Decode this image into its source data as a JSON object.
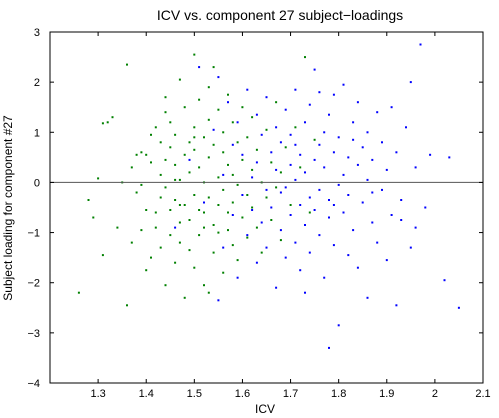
{
  "figure": {
    "background": "#ffffff"
  },
  "chart_data": {
    "type": "scatter",
    "title": "ICV vs. component 27 subject−loadings",
    "xlabel": "ICV",
    "ylabel": "Subject loading for component #27",
    "xlim": [
      1.2,
      2.1
    ],
    "ylim": [
      -4,
      3
    ],
    "x_ticks": [
      1.3,
      1.4,
      1.5,
      1.6,
      1.7,
      1.8,
      1.9,
      2.0,
      2.1
    ],
    "x_tick_labels": [
      "1.3",
      "1.4",
      "1.5",
      "1.6",
      "1.7",
      "1.8",
      "1.9",
      "2",
      "2.1"
    ],
    "y_ticks": [
      -4,
      -3,
      -2,
      -1,
      0,
      1,
      2,
      3
    ],
    "y_tick_labels": [
      "−4",
      "−3",
      "−2",
      "−1",
      "0",
      "1",
      "2",
      "3"
    ],
    "reference_line_y": 0,
    "grid": false,
    "legend": "none",
    "series": [
      {
        "color": "#008000",
        "points": [
          [
            1.26,
            -2.2
          ],
          [
            1.28,
            -0.35
          ],
          [
            1.29,
            -0.7
          ],
          [
            1.3,
            0.08
          ],
          [
            1.31,
            -1.45
          ],
          [
            1.31,
            1.18
          ],
          [
            1.32,
            1.2
          ],
          [
            1.33,
            1.3
          ],
          [
            1.34,
            -0.9
          ],
          [
            1.35,
            0.0
          ],
          [
            1.36,
            2.35
          ],
          [
            1.36,
            -2.45
          ],
          [
            1.37,
            -1.2
          ],
          [
            1.37,
            0.3
          ],
          [
            1.38,
            -0.2
          ],
          [
            1.38,
            0.55
          ],
          [
            1.39,
            -0.95
          ],
          [
            1.39,
            0.6
          ],
          [
            1.39,
            -0.05
          ],
          [
            1.4,
            -0.55
          ],
          [
            1.4,
            0.55
          ],
          [
            1.4,
            -1.75
          ],
          [
            1.41,
            0.95
          ],
          [
            1.41,
            -1.5
          ],
          [
            1.41,
            0.4
          ],
          [
            1.42,
            -0.6
          ],
          [
            1.42,
            1.1
          ],
          [
            1.42,
            -0.9
          ],
          [
            1.43,
            -0.3
          ],
          [
            1.43,
            0.8
          ],
          [
            1.43,
            -1.3
          ],
          [
            1.43,
            0.15
          ],
          [
            1.44,
            1.4
          ],
          [
            1.44,
            -0.1
          ],
          [
            1.44,
            -2.05
          ],
          [
            1.44,
            0.45
          ],
          [
            1.45,
            -0.55
          ],
          [
            1.45,
            -1.05
          ],
          [
            1.45,
            0.7
          ],
          [
            1.45,
            1.2
          ],
          [
            1.46,
            -0.35
          ],
          [
            1.46,
            0.35
          ],
          [
            1.46,
            -1.6
          ],
          [
            1.46,
            0.95
          ],
          [
            1.47,
            -0.8
          ],
          [
            1.47,
            2.05
          ],
          [
            1.47,
            0.05
          ],
          [
            1.47,
            -1.2
          ],
          [
            1.48,
            0.55
          ],
          [
            1.48,
            -0.45
          ],
          [
            1.48,
            1.5
          ],
          [
            1.48,
            -2.3
          ],
          [
            1.49,
            0.2
          ],
          [
            1.49,
            -0.75
          ],
          [
            1.49,
            0.8
          ],
          [
            1.49,
            -1.35
          ],
          [
            1.5,
            2.55
          ],
          [
            1.5,
            -0.25
          ],
          [
            1.5,
            0.65
          ],
          [
            1.5,
            -1.7
          ],
          [
            1.5,
            1.1
          ],
          [
            1.51,
            -0.55
          ],
          [
            1.51,
            0.3
          ],
          [
            1.51,
            -1.05
          ],
          [
            1.51,
            1.65
          ],
          [
            1.52,
            -2.05
          ],
          [
            1.52,
            0.0
          ],
          [
            1.52,
            0.9
          ],
          [
            1.52,
            -0.6
          ],
          [
            1.53,
            -2.2
          ],
          [
            1.53,
            1.25
          ],
          [
            1.53,
            -0.3
          ],
          [
            1.53,
            0.5
          ],
          [
            1.54,
            -1.4
          ],
          [
            1.54,
            0.75
          ],
          [
            1.54,
            -0.85
          ],
          [
            1.54,
            2.3
          ],
          [
            1.55,
            0.1
          ],
          [
            1.55,
            -0.45
          ],
          [
            1.55,
            1.45
          ],
          [
            1.55,
            -1.0
          ],
          [
            1.56,
            0.6
          ],
          [
            1.56,
            -0.15
          ],
          [
            1.56,
            1.0
          ],
          [
            1.56,
            -1.8
          ],
          [
            1.57,
            -0.6
          ],
          [
            1.57,
            0.35
          ],
          [
            1.57,
            1.75
          ],
          [
            1.57,
            -0.95
          ],
          [
            1.58,
            0.15
          ],
          [
            1.58,
            -0.4
          ],
          [
            1.58,
            1.2
          ],
          [
            1.58,
            -1.25
          ],
          [
            1.59,
            0.8
          ],
          [
            1.59,
            -0.05
          ],
          [
            1.59,
            -1.55
          ],
          [
            1.6,
            0.45
          ],
          [
            1.6,
            -0.7
          ],
          [
            1.6,
            1.5
          ],
          [
            1.61,
            -0.25
          ],
          [
            1.61,
            0.9
          ],
          [
            1.61,
            -1.1
          ],
          [
            1.62,
            0.25
          ],
          [
            1.62,
            -0.5
          ],
          [
            1.62,
            1.3
          ],
          [
            1.63,
            -0.9
          ],
          [
            1.63,
            0.65
          ],
          [
            1.64,
            0.0
          ],
          [
            1.64,
            -1.4
          ],
          [
            1.65,
            1.05
          ],
          [
            1.65,
            -0.3
          ],
          [
            1.66,
            0.4
          ],
          [
            1.66,
            -0.75
          ],
          [
            1.67,
            1.6
          ],
          [
            1.67,
            -0.1
          ],
          [
            1.68,
            0.2
          ],
          [
            1.68,
            -1.15
          ],
          [
            1.69,
            0.7
          ],
          [
            1.7,
            -0.45
          ],
          [
            1.71,
            1.1
          ],
          [
            1.72,
            0.3
          ],
          [
            1.73,
            2.5
          ],
          [
            1.74,
            -0.6
          ],
          [
            1.75,
            0.85
          ],
          [
            1.44,
            1.7
          ],
          [
            1.46,
            0.05
          ],
          [
            1.47,
            -0.45
          ],
          [
            1.5,
            0.9
          ],
          [
            1.52,
            -0.9
          ],
          [
            1.53,
            1.9
          ]
        ]
      },
      {
        "color": "#0000ff",
        "points": [
          [
            1.46,
            -0.9
          ],
          [
            1.49,
            0.45
          ],
          [
            1.51,
            2.3
          ],
          [
            1.52,
            -0.4
          ],
          [
            1.54,
            1.05
          ],
          [
            1.55,
            -2.35
          ],
          [
            1.55,
            2.1
          ],
          [
            1.56,
            0.15
          ],
          [
            1.56,
            -1.3
          ],
          [
            1.57,
            1.6
          ],
          [
            1.58,
            -0.65
          ],
          [
            1.58,
            0.75
          ],
          [
            1.59,
            -1.9
          ],
          [
            1.59,
            1.2
          ],
          [
            1.6,
            -0.25
          ],
          [
            1.6,
            0.55
          ],
          [
            1.61,
            1.85
          ],
          [
            1.61,
            -1.05
          ],
          [
            1.62,
            0.1
          ],
          [
            1.62,
            -0.55
          ],
          [
            1.63,
            1.35
          ],
          [
            1.63,
            -1.6
          ],
          [
            1.63,
            0.4
          ],
          [
            1.64,
            -0.8
          ],
          [
            1.64,
            0.95
          ],
          [
            1.65,
            -0.15
          ],
          [
            1.65,
            -1.3
          ],
          [
            1.65,
            1.7
          ],
          [
            1.66,
            0.6
          ],
          [
            1.66,
            -0.5
          ],
          [
            1.67,
            -2.1
          ],
          [
            1.67,
            0.25
          ],
          [
            1.67,
            1.1
          ],
          [
            1.68,
            -0.95
          ],
          [
            1.68,
            0.8
          ],
          [
            1.68,
            -0.2
          ],
          [
            1.69,
            1.45
          ],
          [
            1.69,
            -1.5
          ],
          [
            1.7,
            0.35
          ],
          [
            1.7,
            -0.65
          ],
          [
            1.7,
            0.95
          ],
          [
            1.71,
            -1.2
          ],
          [
            1.71,
            1.85
          ],
          [
            1.71,
            0.05
          ],
          [
            1.72,
            -0.45
          ],
          [
            1.72,
            0.55
          ],
          [
            1.72,
            -1.75
          ],
          [
            1.73,
            1.2
          ],
          [
            1.73,
            -0.85
          ],
          [
            1.73,
            0.2
          ],
          [
            1.74,
            -0.3
          ],
          [
            1.74,
            1.55
          ],
          [
            1.74,
            -1.4
          ],
          [
            1.75,
            0.45
          ],
          [
            1.75,
            -0.55
          ],
          [
            1.75,
            2.25
          ],
          [
            1.76,
            -1.05
          ],
          [
            1.76,
            0.75
          ],
          [
            1.76,
            -0.15
          ],
          [
            1.77,
            1.0
          ],
          [
            1.77,
            -1.9
          ],
          [
            1.77,
            0.3
          ],
          [
            1.78,
            -0.7
          ],
          [
            1.78,
            1.35
          ],
          [
            1.78,
            -0.35
          ],
          [
            1.79,
            0.6
          ],
          [
            1.79,
            -1.25
          ],
          [
            1.79,
            1.75
          ],
          [
            1.8,
            -0.05
          ],
          [
            1.8,
            -2.85
          ],
          [
            1.8,
            0.9
          ],
          [
            1.81,
            -0.6
          ],
          [
            1.81,
            1.95
          ],
          [
            1.81,
            0.15
          ],
          [
            1.82,
            -1.45
          ],
          [
            1.82,
            0.5
          ],
          [
            1.82,
            -0.25
          ],
          [
            1.83,
            1.2
          ],
          [
            1.83,
            -0.95
          ],
          [
            1.84,
            0.35
          ],
          [
            1.84,
            -1.7
          ],
          [
            1.84,
            1.6
          ],
          [
            1.85,
            -0.4
          ],
          [
            1.85,
            0.7
          ],
          [
            1.86,
            -2.3
          ],
          [
            1.86,
            0.05
          ],
          [
            1.86,
            1.0
          ],
          [
            1.87,
            -0.8
          ],
          [
            1.87,
            0.45
          ],
          [
            1.88,
            -1.2
          ],
          [
            1.88,
            1.4
          ],
          [
            1.89,
            -0.15
          ],
          [
            1.89,
            0.8
          ],
          [
            1.9,
            -1.55
          ],
          [
            1.9,
            0.25
          ],
          [
            1.91,
            1.5
          ],
          [
            1.91,
            -0.65
          ],
          [
            1.92,
            -2.45
          ],
          [
            1.92,
            0.6
          ],
          [
            1.93,
            -0.35
          ],
          [
            1.94,
            1.1
          ],
          [
            1.95,
            -1.3
          ],
          [
            1.95,
            2.0
          ],
          [
            1.96,
            0.3
          ],
          [
            1.96,
            -0.9
          ],
          [
            1.97,
            2.75
          ],
          [
            1.98,
            -0.5
          ],
          [
            1.99,
            0.55
          ],
          [
            2.02,
            -1.95
          ],
          [
            2.03,
            0.5
          ],
          [
            2.05,
            -2.5
          ],
          [
            1.78,
            -3.3
          ],
          [
            1.69,
            -0.1
          ],
          [
            1.71,
            0.75
          ],
          [
            1.73,
            -2.2
          ],
          [
            1.76,
            1.8
          ],
          [
            1.79,
            -0.45
          ],
          [
            1.83,
            0.85
          ],
          [
            1.87,
            -0.2
          ],
          [
            1.93,
            -0.75
          ]
        ]
      }
    ]
  }
}
